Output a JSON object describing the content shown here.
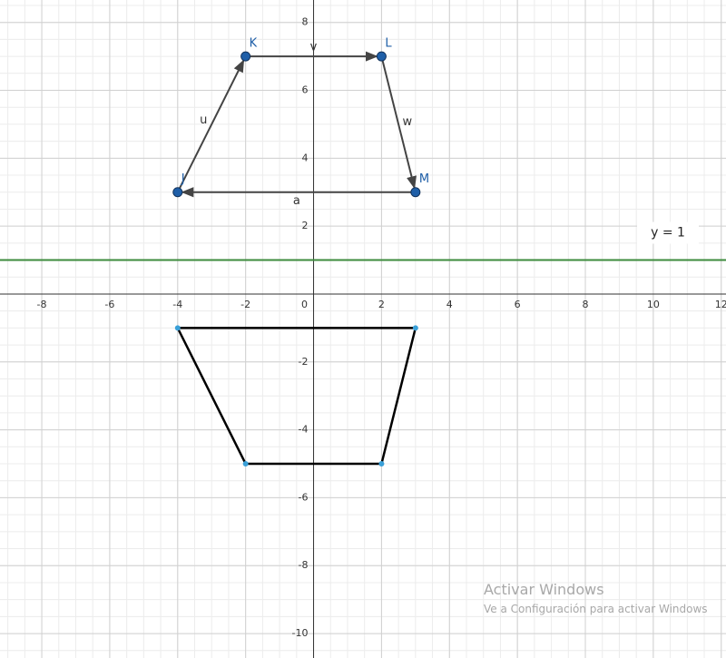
{
  "chart_data": {
    "type": "geometry",
    "xlim": [
      -9.23,
      12.14
    ],
    "ylim": [
      -10.72,
      8.66
    ],
    "xticks": [
      -8,
      -6,
      -4,
      -2,
      0,
      2,
      4,
      6,
      8,
      10,
      12
    ],
    "yticks": [
      -10,
      -8,
      -6,
      -4,
      -2,
      2,
      4,
      6,
      8
    ],
    "grid": true,
    "points": [
      {
        "name": "J",
        "x": -4,
        "y": 3
      },
      {
        "name": "K",
        "x": -2,
        "y": 7
      },
      {
        "name": "L",
        "x": 2,
        "y": 7
      },
      {
        "name": "M",
        "x": 3,
        "y": 3
      }
    ],
    "point_color": "#1f5fa8",
    "vectors": [
      {
        "name": "u",
        "x1": -4,
        "y1": 3,
        "x2": -2,
        "y2": 7
      },
      {
        "name": "v",
        "x1": -2,
        "y1": 7,
        "x2": 2,
        "y2": 7
      },
      {
        "name": "w",
        "x1": 2,
        "y1": 7,
        "x2": 3,
        "y2": 3
      },
      {
        "name": "a",
        "x1": 3,
        "y1": 3,
        "x2": -4,
        "y2": 3
      }
    ],
    "vector_color": "#444444",
    "lines": [
      {
        "label": "y = 1",
        "y": 1,
        "color": "#3d8b3d"
      }
    ],
    "polygon": {
      "x": [
        -4,
        3,
        2,
        -2
      ],
      "y": [
        -1,
        -1,
        -5,
        -5
      ],
      "color": "#000000",
      "vertex_color": "#3aa0d8"
    }
  },
  "watermark": {
    "title": "Activar Windows",
    "subtitle": "Ve a Configuración para activar Windows"
  }
}
